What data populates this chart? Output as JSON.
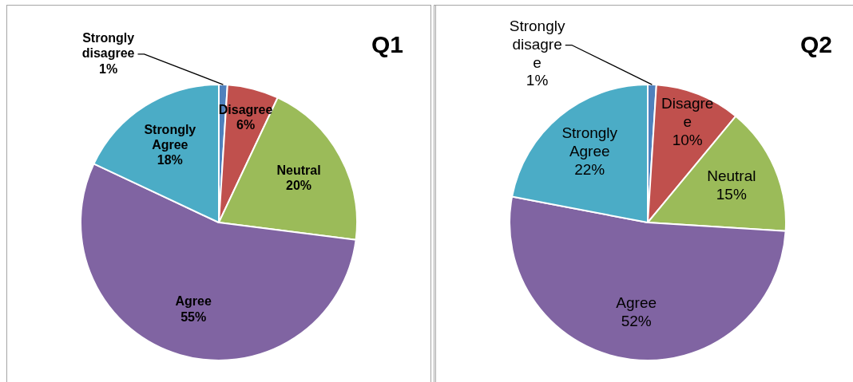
{
  "chart_data": [
    {
      "type": "pie",
      "title": "Q1",
      "categories": [
        "Strongly disagree",
        "Disagree",
        "Neutral",
        "Agree",
        "Strongly Agree"
      ],
      "values": [
        1,
        6,
        20,
        55,
        18
      ],
      "colors": [
        "#4f81bd",
        "#c0504d",
        "#9bbb59",
        "#8064a2",
        "#4bacc6"
      ],
      "value_labels": [
        "1%",
        "6%",
        "20%",
        "55%",
        "18%"
      ],
      "legend": false
    },
    {
      "type": "pie",
      "title": "Q2",
      "categories": [
        "Strongly disagree",
        "Disagree",
        "Neutral",
        "Agree",
        "Strongly Agree"
      ],
      "values": [
        1,
        10,
        15,
        52,
        22
      ],
      "colors": [
        "#4f81bd",
        "#c0504d",
        "#9bbb59",
        "#8064a2",
        "#4bacc6"
      ],
      "value_labels": [
        "1%",
        "10%",
        "15%",
        "52%",
        "22%"
      ],
      "legend": false
    }
  ]
}
